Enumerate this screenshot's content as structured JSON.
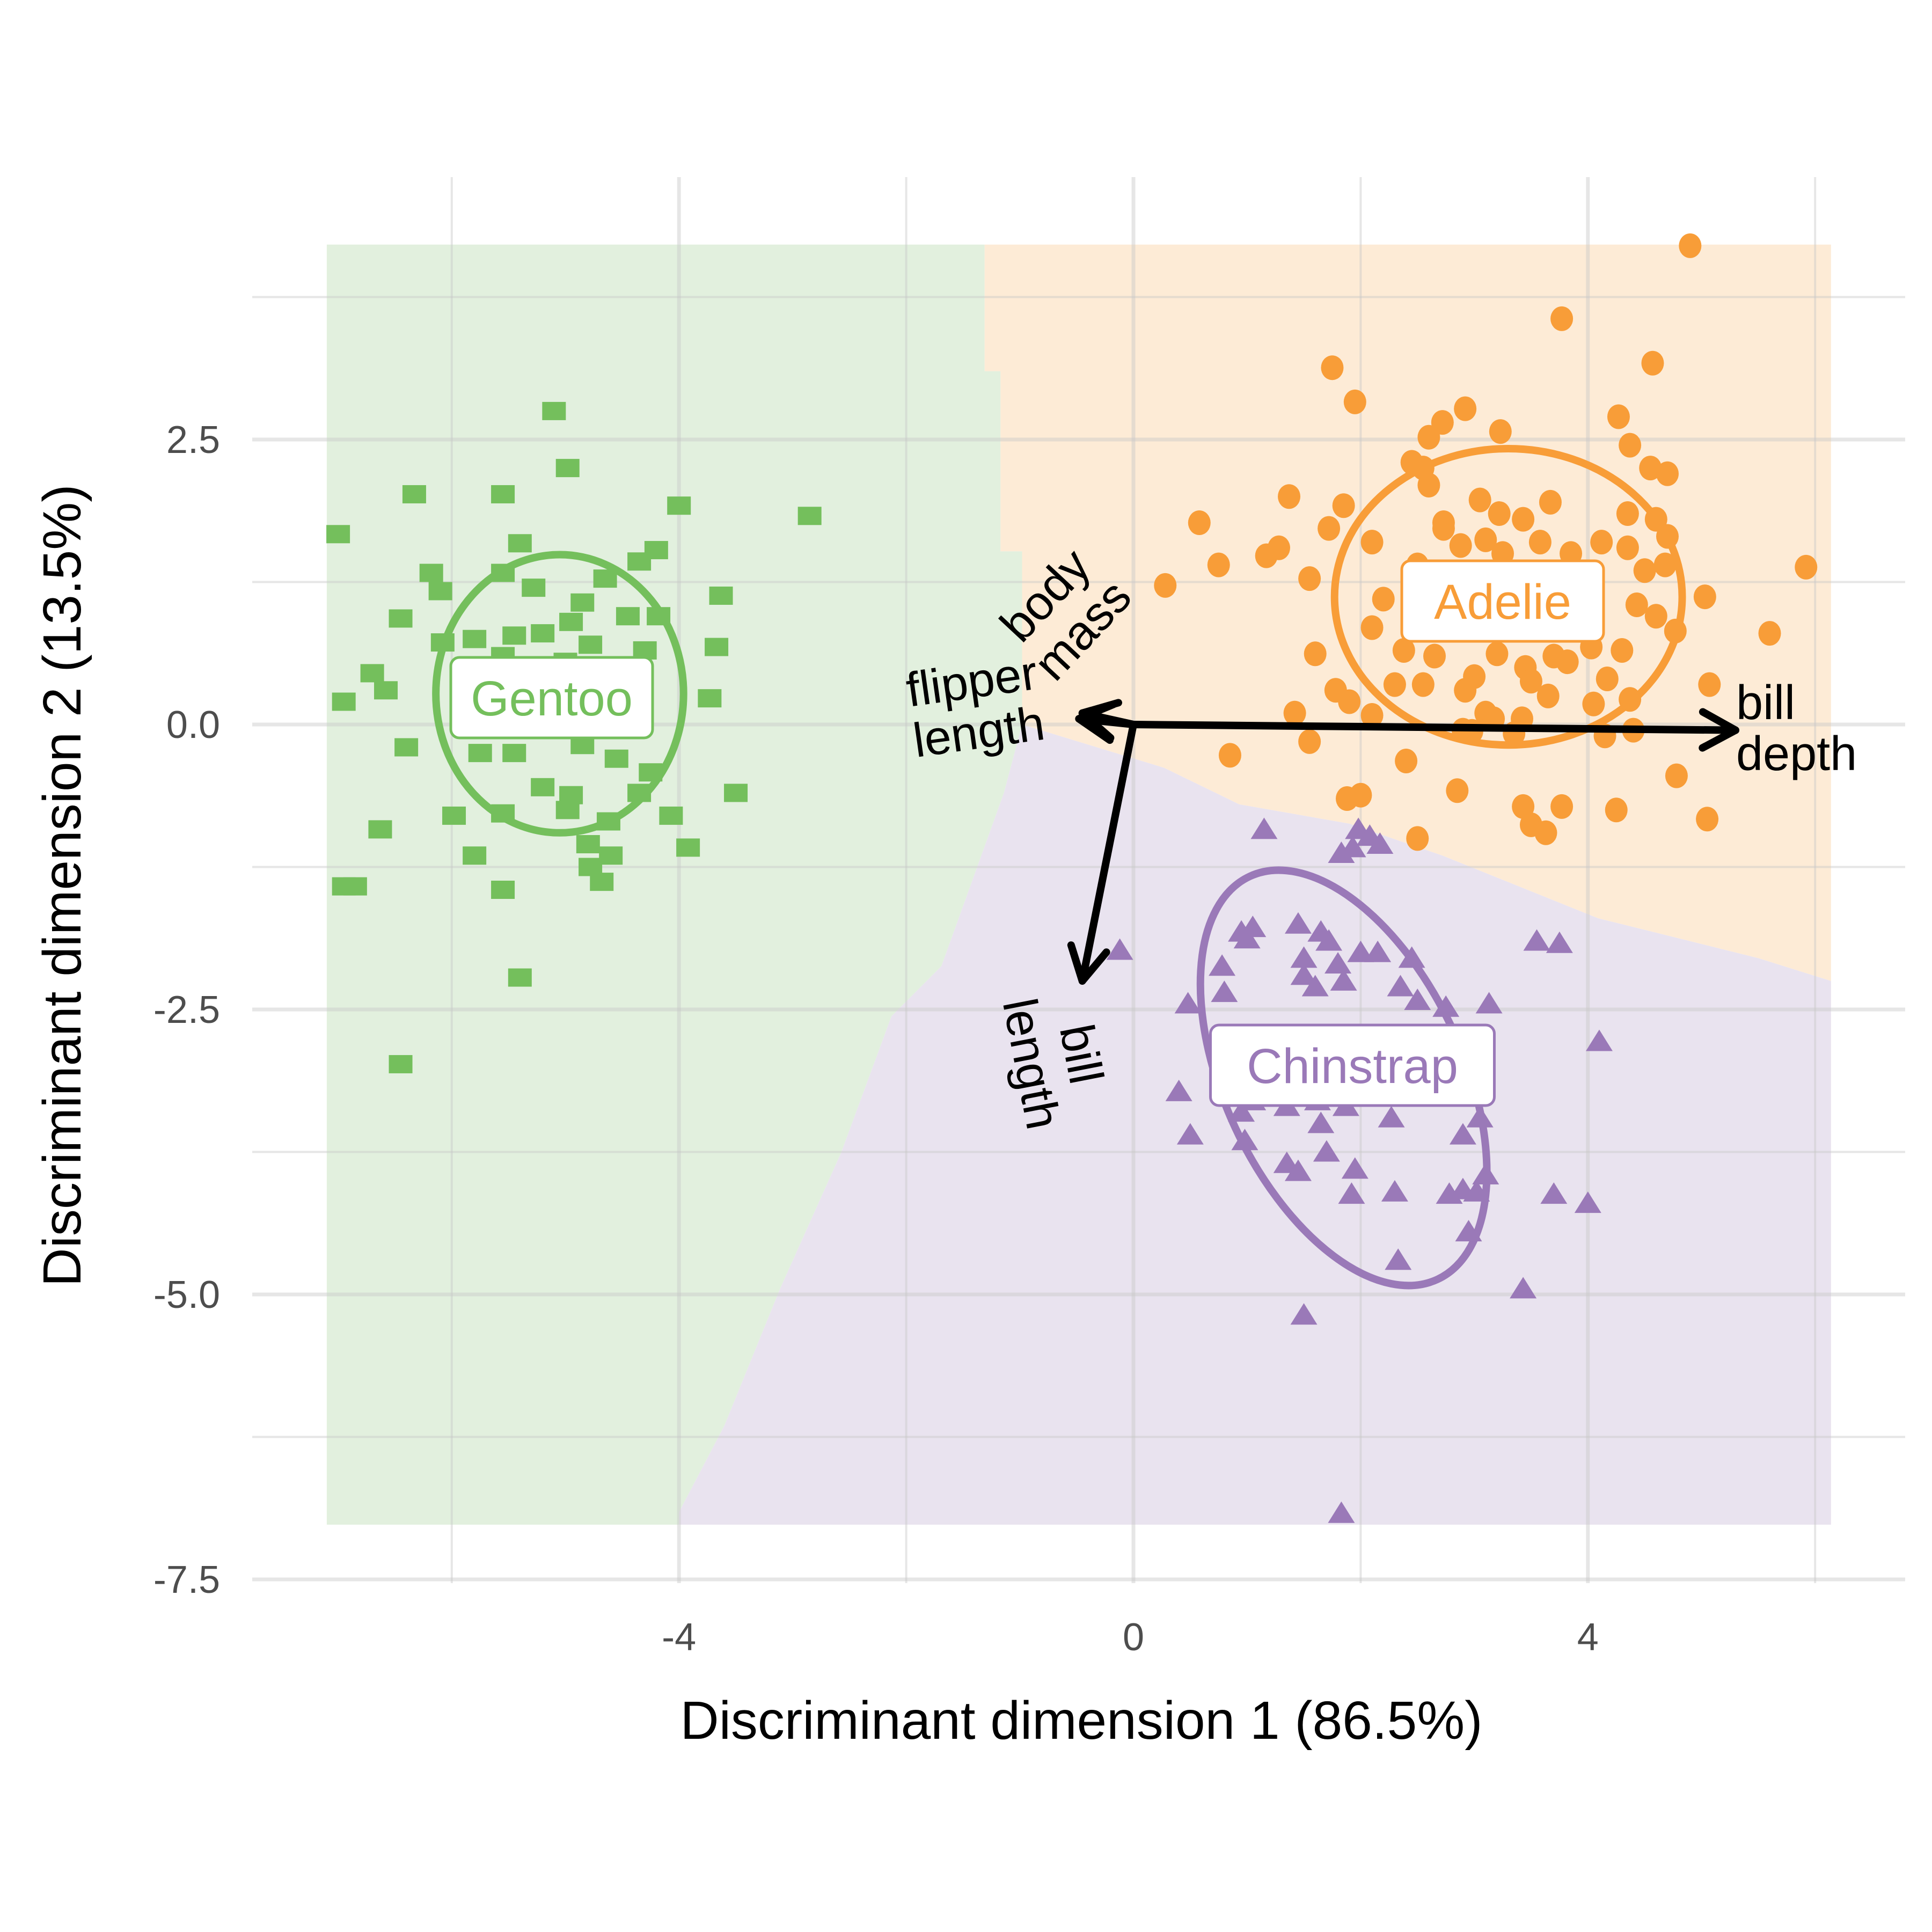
{
  "chart_data": {
    "type": "scatter",
    "title": "",
    "xlabel": "Discriminant dimension 1 (86.5%)",
    "ylabel": "Discriminant dimension 2 (13.5%)",
    "xlim": [
      -7.3,
      6.7
    ],
    "ylim": [
      -7.5,
      4.6
    ],
    "x_ticks": [
      -4,
      0,
      4
    ],
    "x_tick_labels": [
      "-4",
      "0",
      "4"
    ],
    "x_minor_ticks": [
      -6,
      -2,
      2,
      6
    ],
    "y_ticks": [
      -7.5,
      -5.0,
      -2.5,
      0.0,
      2.5
    ],
    "y_tick_labels": [
      "-7.5",
      "-5.0",
      "-2.5",
      "0.0",
      "2.5"
    ],
    "y_minor_ticks": [
      -6.25,
      -3.75,
      -1.25,
      1.25,
      3.75
    ],
    "grid": true,
    "legend": "none",
    "regions": [
      {
        "name": "Gentoo",
        "color": "#e2f0de",
        "polygon": [
          [
            -7.1,
            4.21
          ],
          [
            -1.31,
            4.21
          ],
          [
            -1.31,
            3.1
          ],
          [
            -1.17,
            3.1
          ],
          [
            -1.17,
            1.52
          ],
          [
            -0.98,
            1.52
          ],
          [
            -0.98,
            0.0
          ],
          [
            -1.14,
            -0.6
          ],
          [
            -1.69,
            -2.12
          ],
          [
            -2.13,
            -2.56
          ],
          [
            -2.57,
            -3.75
          ],
          [
            -3.11,
            -4.95
          ],
          [
            -3.6,
            -6.15
          ],
          [
            -4.0,
            -6.91
          ],
          [
            -4.0,
            -7.02
          ],
          [
            -7.1,
            -7.02
          ]
        ]
      },
      {
        "name": "Adelie",
        "color": "#fdebd6",
        "polygon": [
          [
            -1.31,
            4.21
          ],
          [
            6.14,
            4.21
          ],
          [
            6.14,
            -2.25
          ],
          [
            5.5,
            -2.05
          ],
          [
            4.09,
            -1.7
          ],
          [
            2.72,
            -1.15
          ],
          [
            1.9,
            -0.87
          ],
          [
            0.93,
            -0.7
          ],
          [
            0.27,
            -0.38
          ],
          [
            -0.98,
            0.0
          ],
          [
            -0.98,
            1.52
          ],
          [
            -1.17,
            1.52
          ],
          [
            -1.17,
            3.1
          ],
          [
            -1.31,
            3.1
          ]
        ]
      },
      {
        "name": "Chinstrap",
        "color": "#e9e3ef",
        "polygon": [
          [
            -0.98,
            0.0
          ],
          [
            0.27,
            -0.38
          ],
          [
            0.93,
            -0.7
          ],
          [
            1.9,
            -0.87
          ],
          [
            2.72,
            -1.15
          ],
          [
            4.09,
            -1.7
          ],
          [
            5.5,
            -2.05
          ],
          [
            6.14,
            -2.25
          ],
          [
            6.14,
            -7.02
          ],
          [
            -4.0,
            -7.02
          ],
          [
            -4.0,
            -6.91
          ],
          [
            -3.6,
            -6.15
          ],
          [
            -3.11,
            -4.95
          ],
          [
            -2.57,
            -3.75
          ],
          [
            -2.13,
            -2.56
          ],
          [
            -1.69,
            -2.12
          ],
          [
            -1.14,
            -0.6
          ]
        ]
      }
    ],
    "series": [
      {
        "name": "Gentoo",
        "marker": "square",
        "color": "#74bf5c",
        "label": "Gentoo",
        "ellipse": {
          "cx": -5.05,
          "cy": 0.27,
          "rx": 1.09,
          "ry": 1.22,
          "angle": 0
        },
        "points": [
          [
            -5.1,
            2.75
          ],
          [
            -4.98,
            2.25
          ],
          [
            -6.33,
            2.02
          ],
          [
            -5.55,
            2.02
          ],
          [
            -7.0,
            1.67
          ],
          [
            -4.0,
            1.92
          ],
          [
            -2.85,
            1.83
          ],
          [
            -5.4,
            1.59
          ],
          [
            -4.2,
            1.53
          ],
          [
            -4.35,
            1.43
          ],
          [
            -6.18,
            1.33
          ],
          [
            -6.1,
            1.17
          ],
          [
            -5.55,
            1.33
          ],
          [
            -5.28,
            1.2
          ],
          [
            -4.65,
            1.28
          ],
          [
            -4.85,
            1.07
          ],
          [
            -3.63,
            1.13
          ],
          [
            -6.45,
            0.93
          ],
          [
            -5.2,
            0.8
          ],
          [
            -5.45,
            0.78
          ],
          [
            -4.95,
            0.9
          ],
          [
            -4.45,
            0.95
          ],
          [
            -4.18,
            0.95
          ],
          [
            -3.67,
            0.68
          ],
          [
            -6.08,
            0.72
          ],
          [
            -5.8,
            0.75
          ],
          [
            -5.55,
            0.6
          ],
          [
            -4.78,
            0.7
          ],
          [
            -5.0,
            0.55
          ],
          [
            -4.3,
            0.65
          ],
          [
            -6.7,
            0.45
          ],
          [
            -6.58,
            0.3
          ],
          [
            -6.95,
            0.2
          ],
          [
            -5.38,
            0.3
          ],
          [
            -4.65,
            0.35
          ],
          [
            -3.73,
            0.23
          ],
          [
            -3.5,
            -0.6
          ],
          [
            -6.4,
            -0.2
          ],
          [
            -5.75,
            -0.25
          ],
          [
            -5.45,
            -0.25
          ],
          [
            -4.85,
            -0.18
          ],
          [
            -4.55,
            -0.3
          ],
          [
            -5.2,
            -0.55
          ],
          [
            -4.95,
            -0.62
          ],
          [
            -4.35,
            -0.6
          ],
          [
            -4.25,
            -0.42
          ],
          [
            -5.98,
            -0.8
          ],
          [
            -5.55,
            -0.78
          ],
          [
            -4.98,
            -0.75
          ],
          [
            -4.62,
            -0.85
          ],
          [
            -4.07,
            -0.8
          ],
          [
            -6.63,
            -0.92
          ],
          [
            -5.8,
            -1.15
          ],
          [
            -4.8,
            -1.05
          ],
          [
            -4.6,
            -1.15
          ],
          [
            -3.92,
            -1.08
          ],
          [
            -4.68,
            -1.38
          ],
          [
            -4.78,
            -1.25
          ],
          [
            -6.85,
            -1.42
          ],
          [
            -6.95,
            -1.42
          ],
          [
            -5.55,
            -1.45
          ],
          [
            -5.4,
            -2.22
          ],
          [
            -6.45,
            -2.98
          ]
        ]
      },
      {
        "name": "Adelie",
        "marker": "circle",
        "color": "#f89d38",
        "label": "Adelie",
        "ellipse": {
          "cx": 3.3,
          "cy": 1.12,
          "rx": 1.53,
          "ry": 1.3,
          "angle": 0
        },
        "points": [
          [
            4.9,
            4.2
          ],
          [
            3.77,
            3.56
          ],
          [
            4.57,
            3.17
          ],
          [
            1.75,
            3.13
          ],
          [
            1.95,
            2.83
          ],
          [
            2.92,
            2.77
          ],
          [
            2.72,
            2.65
          ],
          [
            2.6,
            2.52
          ],
          [
            3.23,
            2.57
          ],
          [
            4.27,
            2.7
          ],
          [
            4.37,
            2.45
          ],
          [
            2.45,
            2.3
          ],
          [
            2.55,
            2.25
          ],
          [
            4.55,
            2.25
          ],
          [
            4.7,
            2.2
          ],
          [
            0.58,
            1.77
          ],
          [
            1.37,
            2.0
          ],
          [
            1.85,
            1.92
          ],
          [
            2.6,
            2.1
          ],
          [
            2.73,
            1.72
          ],
          [
            3.05,
            1.97
          ],
          [
            3.22,
            1.85
          ],
          [
            3.43,
            1.8
          ],
          [
            3.67,
            1.95
          ],
          [
            4.35,
            1.85
          ],
          [
            4.6,
            1.8
          ],
          [
            4.7,
            1.65
          ],
          [
            0.75,
            1.4
          ],
          [
            1.17,
            1.48
          ],
          [
            1.28,
            1.55
          ],
          [
            1.72,
            1.72
          ],
          [
            2.1,
            1.6
          ],
          [
            2.5,
            1.4
          ],
          [
            2.73,
            1.77
          ],
          [
            2.88,
            1.57
          ],
          [
            3.1,
            1.62
          ],
          [
            3.25,
            1.5
          ],
          [
            3.58,
            1.6
          ],
          [
            3.85,
            1.5
          ],
          [
            4.12,
            1.6
          ],
          [
            4.35,
            1.55
          ],
          [
            4.5,
            1.35
          ],
          [
            4.68,
            1.4
          ],
          [
            5.92,
            1.38
          ],
          [
            0.28,
            1.22
          ],
          [
            1.55,
            1.28
          ],
          [
            2.2,
            1.1
          ],
          [
            2.75,
            1.08
          ],
          [
            3.05,
            1.15
          ],
          [
            3.48,
            1.1
          ],
          [
            4.43,
            1.05
          ],
          [
            4.6,
            0.95
          ],
          [
            5.03,
            1.12
          ],
          [
            2.1,
            0.85
          ],
          [
            2.38,
            0.65
          ],
          [
            2.65,
            0.6
          ],
          [
            3.7,
            0.6
          ],
          [
            4.03,
            0.68
          ],
          [
            4.77,
            0.82
          ],
          [
            5.6,
            0.8
          ],
          [
            1.6,
            0.62
          ],
          [
            2.55,
            0.35
          ],
          [
            3.0,
            0.42
          ],
          [
            3.2,
            0.62
          ],
          [
            3.45,
            0.5
          ],
          [
            3.82,
            0.55
          ],
          [
            4.3,
            0.65
          ],
          [
            5.07,
            0.35
          ],
          [
            1.78,
            0.3
          ],
          [
            1.9,
            0.2
          ],
          [
            2.3,
            0.35
          ],
          [
            2.92,
            0.3
          ],
          [
            3.1,
            0.1
          ],
          [
            3.5,
            0.38
          ],
          [
            3.65,
            0.25
          ],
          [
            4.17,
            0.4
          ],
          [
            4.37,
            0.22
          ],
          [
            1.42,
            0.1
          ],
          [
            2.1,
            0.08
          ],
          [
            2.98,
            -0.06
          ],
          [
            3.17,
            0.05
          ],
          [
            3.42,
            0.05
          ],
          [
            4.05,
            0.18
          ],
          [
            4.4,
            -0.05
          ],
          [
            0.85,
            -0.27
          ],
          [
            2.9,
            -0.05
          ],
          [
            3.35,
            -0.08
          ],
          [
            4.15,
            -0.1
          ],
          [
            1.55,
            -0.15
          ],
          [
            2.4,
            -0.32
          ],
          [
            2.85,
            -0.58
          ],
          [
            3.63,
            -0.95
          ],
          [
            1.88,
            -0.65
          ],
          [
            3.77,
            -0.72
          ],
          [
            3.43,
            -0.72
          ],
          [
            4.25,
            -0.75
          ],
          [
            4.78,
            -0.45
          ],
          [
            5.05,
            -0.83
          ],
          [
            3.5,
            -0.88
          ],
          [
            2.5,
            -1.0
          ],
          [
            2.0,
            -0.62
          ]
        ]
      },
      {
        "name": "Chinstrap",
        "marker": "triangle",
        "color": "#9a79b8",
        "label": "Chinstrap",
        "ellipse": {
          "cx": 1.85,
          "cy": -3.1,
          "rx": 1.05,
          "ry": 1.95,
          "angle": -25
        },
        "points": [
          [
            1.15,
            -0.92
          ],
          [
            1.98,
            -0.92
          ],
          [
            2.08,
            -0.98
          ],
          [
            2.17,
            -1.05
          ],
          [
            1.93,
            -1.08
          ],
          [
            1.83,
            -1.13
          ],
          [
            -0.12,
            -1.98
          ],
          [
            0.95,
            -1.82
          ],
          [
            1.05,
            -1.78
          ],
          [
            1.0,
            -1.88
          ],
          [
            1.45,
            -1.75
          ],
          [
            1.65,
            -1.82
          ],
          [
            1.72,
            -1.9
          ],
          [
            1.5,
            -2.05
          ],
          [
            1.8,
            -2.1
          ],
          [
            2.0,
            -2.0
          ],
          [
            2.15,
            -2.0
          ],
          [
            2.45,
            -2.05
          ],
          [
            3.55,
            -1.9
          ],
          [
            3.75,
            -1.92
          ],
          [
            1.5,
            -2.2
          ],
          [
            1.6,
            -2.3
          ],
          [
            1.85,
            -2.25
          ],
          [
            2.35,
            -2.3
          ],
          [
            2.5,
            -2.42
          ],
          [
            2.75,
            -2.48
          ],
          [
            0.48,
            -2.45
          ],
          [
            0.78,
            -2.12
          ],
          [
            0.8,
            -2.35
          ],
          [
            3.13,
            -2.45
          ],
          [
            4.1,
            -2.78
          ],
          [
            0.4,
            -3.22
          ],
          [
            0.5,
            -3.6
          ],
          [
            0.95,
            -3.4
          ],
          [
            1.05,
            -3.3
          ],
          [
            1.35,
            -3.35
          ],
          [
            1.62,
            -3.3
          ],
          [
            1.87,
            -3.35
          ],
          [
            2.27,
            -3.45
          ],
          [
            2.9,
            -3.6
          ],
          [
            3.05,
            -3.45
          ],
          [
            0.98,
            -3.65
          ],
          [
            1.65,
            -3.5
          ],
          [
            1.7,
            -3.75
          ],
          [
            1.35,
            -3.85
          ],
          [
            1.45,
            -3.92
          ],
          [
            1.95,
            -3.9
          ],
          [
            2.3,
            -4.1
          ],
          [
            1.92,
            -4.12
          ],
          [
            2.78,
            -4.12
          ],
          [
            2.9,
            -4.08
          ],
          [
            3.02,
            -4.1
          ],
          [
            3.1,
            -3.95
          ],
          [
            3.7,
            -4.12
          ],
          [
            4.0,
            -4.2
          ],
          [
            2.95,
            -4.45
          ],
          [
            2.33,
            -4.7
          ],
          [
            3.43,
            -4.95
          ],
          [
            1.5,
            -5.18
          ],
          [
            1.83,
            -6.92
          ]
        ]
      }
    ],
    "vectors": [
      {
        "name": "bill depth",
        "x": 5.3,
        "y": -0.05,
        "label_lines": [
          "bill",
          "depth"
        ],
        "label_angle": 0
      },
      {
        "name": "bill length",
        "x": -0.45,
        "y": -2.25,
        "label_lines": [
          "bill",
          "length"
        ],
        "label_angle": -79
      },
      {
        "name": "body mass",
        "x": -0.45,
        "y": 0.1,
        "label_lines": [
          "body",
          "mass"
        ],
        "label_angle": 47
      },
      {
        "name": "flipper length",
        "x": -0.48,
        "y": 0.05,
        "label_lines": [
          "flipper",
          "length"
        ],
        "label_angle": 8
      }
    ]
  }
}
